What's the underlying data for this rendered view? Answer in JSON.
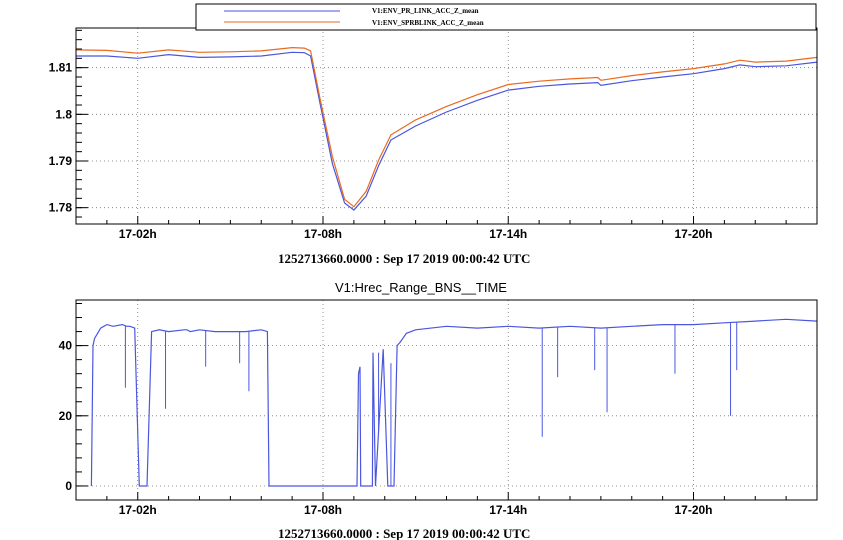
{
  "chart_data": [
    {
      "type": "line",
      "title": "",
      "xlabel": "1252713660.0000 : Sep 17 2019 00:00:42 UTC",
      "ylabel": "",
      "xlim": [
        0,
        24
      ],
      "ylim": [
        1.7765,
        1.8185
      ],
      "grid": true,
      "legend_position": "top",
      "x_tick_values": [
        2,
        8,
        14,
        20
      ],
      "x_tick_labels": [
        "17-02h",
        "17-08h",
        "17-14h",
        "17-20h"
      ],
      "y_tick_values": [
        1.78,
        1.79,
        1.8,
        1.81
      ],
      "y_tick_labels": [
        "1.78",
        "1.79",
        "1.8",
        "1.81"
      ],
      "series": [
        {
          "name": "V1:ENV_PR_LINK_ACC_Z_mean",
          "color": "#4b56e0",
          "x": [
            0,
            1,
            2,
            3,
            4,
            5,
            6,
            7,
            7.4,
            7.6,
            7.9,
            8.3,
            8.7,
            9.0,
            9.4,
            9.8,
            10.2,
            11,
            12,
            13,
            14,
            15,
            16,
            16.9,
            17,
            18,
            19,
            20,
            21,
            21.5,
            22,
            23,
            24
          ],
          "values": [
            1.8125,
            1.8125,
            1.812,
            1.8128,
            1.8122,
            1.8123,
            1.8125,
            1.8133,
            1.8132,
            1.8125,
            1.8025,
            1.7895,
            1.781,
            1.7795,
            1.7825,
            1.789,
            1.7945,
            1.7975,
            1.8005,
            1.803,
            1.8052,
            1.806,
            1.8065,
            1.8068,
            1.8062,
            1.8072,
            1.808,
            1.8087,
            1.8098,
            1.8106,
            1.8102,
            1.8104,
            1.8112
          ]
        },
        {
          "name": "V1:ENV_SPRBLINK_ACC_Z_mean",
          "color": "#ea6a1f",
          "x": [
            0,
            1,
            2,
            3,
            4,
            5,
            6,
            7,
            7.4,
            7.6,
            7.9,
            8.3,
            8.7,
            9.0,
            9.4,
            9.8,
            10.2,
            11,
            12,
            13,
            14,
            15,
            16,
            16.9,
            17,
            18,
            19,
            20,
            21,
            21.5,
            22,
            23,
            24
          ],
          "values": [
            1.8138,
            1.8137,
            1.8131,
            1.8138,
            1.8133,
            1.8134,
            1.8136,
            1.8143,
            1.8142,
            1.8136,
            1.8035,
            1.791,
            1.7818,
            1.7802,
            1.7835,
            1.7902,
            1.7956,
            1.7988,
            1.8017,
            1.8042,
            1.8064,
            1.8071,
            1.8076,
            1.8079,
            1.8073,
            1.8083,
            1.8091,
            1.8098,
            1.8108,
            1.8116,
            1.8112,
            1.8114,
            1.8122
          ]
        }
      ]
    },
    {
      "type": "line",
      "title": "V1:Hrec_Range_BNS__TIME",
      "xlabel": "1252713660.0000 : Sep 17 2019 00:00:42 UTC",
      "ylabel": "",
      "xlim": [
        0,
        24
      ],
      "ylim": [
        -4,
        53
      ],
      "grid": true,
      "x_tick_values": [
        2,
        8,
        14,
        20
      ],
      "x_tick_labels": [
        "17-02h",
        "17-08h",
        "17-14h",
        "17-20h"
      ],
      "y_tick_values": [
        0,
        20,
        40
      ],
      "y_tick_labels": [
        "0",
        "20",
        "40"
      ],
      "series": [
        {
          "name": "",
          "color": "#4b56e0",
          "x": [
            0.5,
            0.55,
            0.6,
            0.8,
            1.0,
            1.2,
            1.5,
            1.65,
            1.75,
            1.9,
            2.05,
            2.2,
            2.3,
            2.45,
            2.7,
            3.0,
            3.5,
            3.6,
            3.7,
            4.0,
            4.5,
            5.0,
            5.5,
            6.0,
            6.2,
            6.25,
            7.0,
            8.0,
            9.0,
            9.1,
            9.15,
            9.2,
            9.22,
            9.3,
            9.6,
            9.62,
            9.7,
            9.95,
            10.1,
            10.3,
            10.4,
            10.5,
            10.7,
            11.0,
            12.0,
            13.0,
            14.0,
            15.0,
            16.0,
            17.0,
            18.0,
            19.0,
            20.0,
            21.0,
            22.0,
            23.0,
            24.0
          ],
          "values": [
            0,
            40,
            42,
            45,
            46,
            45.5,
            46,
            45.5,
            45.5,
            45,
            0,
            0,
            0,
            44,
            44.5,
            44,
            44.5,
            44.5,
            44,
            44.5,
            44,
            44,
            44,
            44.5,
            44,
            0,
            0,
            0,
            0,
            0,
            32,
            34,
            0,
            0,
            0,
            38,
            0,
            39,
            0,
            0,
            40,
            41,
            43.5,
            44.5,
            45.5,
            45,
            45.5,
            45,
            45.5,
            45,
            45.5,
            46,
            46,
            46.5,
            47,
            47.5,
            47
          ]
        }
      ],
      "spikes": [
        {
          "x": 1.6,
          "y": 28
        },
        {
          "x": 2.9,
          "y": 22
        },
        {
          "x": 4.2,
          "y": 34
        },
        {
          "x": 5.3,
          "y": 35
        },
        {
          "x": 5.6,
          "y": 27
        },
        {
          "x": 9.8,
          "y": 38
        },
        {
          "x": 10.2,
          "y": 35
        },
        {
          "x": 15.1,
          "y": 14
        },
        {
          "x": 15.6,
          "y": 31
        },
        {
          "x": 16.8,
          "y": 33
        },
        {
          "x": 17.2,
          "y": 21
        },
        {
          "x": 19.4,
          "y": 32
        },
        {
          "x": 21.2,
          "y": 20
        },
        {
          "x": 21.4,
          "y": 33
        }
      ]
    }
  ]
}
